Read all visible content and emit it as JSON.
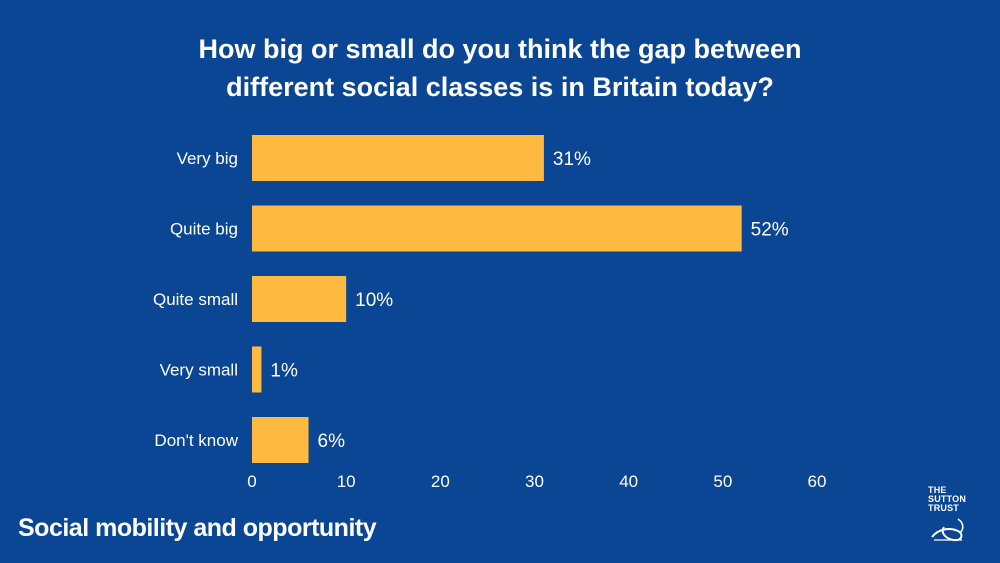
{
  "title_line1": "How big or small do you think the gap between",
  "title_line2": "different social classes is in Britain today?",
  "footer": "Social mobility and opportunity",
  "logo": {
    "line1": "THE",
    "line2": "SUTTON",
    "line3": "TRUST"
  },
  "colors": {
    "background": "#0A4694",
    "bar": "#FDB940",
    "text": "#FFFFFF"
  },
  "chart_data": {
    "type": "bar",
    "orientation": "horizontal",
    "categories": [
      "Very big",
      "Quite big",
      "Quite small",
      "Very small",
      "Don't know"
    ],
    "values": [
      31,
      52,
      10,
      1,
      6
    ],
    "value_labels": [
      "31%",
      "52%",
      "10%",
      "1%",
      "6%"
    ],
    "xlim": [
      0,
      60
    ],
    "x_ticks": [
      0,
      10,
      20,
      30,
      40,
      50,
      60
    ],
    "grid": false
  }
}
